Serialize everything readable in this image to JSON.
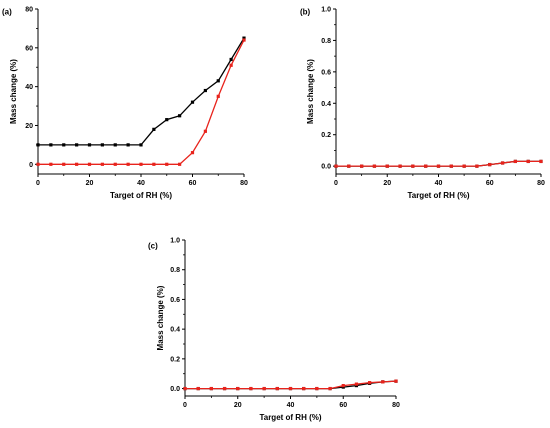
{
  "colors": {
    "black_series": "#000000",
    "red_series": "#e8231c",
    "axis": "#000000"
  },
  "chart_data": [
    {
      "panel_label": "(a)",
      "type": "line",
      "xlabel": "Target of RH (%)",
      "ylabel": "Mass change (%)",
      "xlim": [
        0,
        80
      ],
      "ylim": [
        -5,
        80
      ],
      "xticks": [
        "0",
        "20",
        "40",
        "60",
        "80"
      ],
      "yticks": [
        "0",
        "20",
        "40",
        "60",
        "80"
      ],
      "series": [
        {
          "color": "black",
          "x": [
            0,
            5,
            10,
            15,
            20,
            25,
            30,
            35,
            40,
            45,
            50,
            55,
            60,
            65,
            70,
            75,
            80
          ],
          "y": [
            10,
            10,
            10,
            10,
            10,
            10,
            10,
            10,
            10,
            18,
            23,
            25,
            32,
            38,
            43,
            54,
            65
          ]
        },
        {
          "color": "red",
          "x": [
            0,
            5,
            10,
            15,
            20,
            25,
            30,
            35,
            40,
            45,
            50,
            55,
            60,
            65,
            70,
            75,
            80
          ],
          "y": [
            0,
            0,
            0,
            0,
            0,
            0,
            0,
            0,
            0,
            0,
            0,
            0,
            6,
            17,
            35,
            51,
            64
          ]
        }
      ]
    },
    {
      "panel_label": "(b)",
      "type": "line",
      "xlabel": "Target of RH (%)",
      "ylabel": "Mass change (%)",
      "xlim": [
        0,
        80
      ],
      "ylim": [
        -0.05,
        1.0
      ],
      "xticks": [
        "0",
        "20",
        "40",
        "60",
        "80"
      ],
      "yticks": [
        "0.0",
        "0.2",
        "0.4",
        "0.6",
        "0.8",
        "1.0"
      ],
      "series": [
        {
          "color": "black",
          "x": [
            0,
            5,
            10,
            15,
            20,
            25,
            30,
            35,
            40,
            45,
            50,
            55,
            60,
            65,
            70,
            75,
            80
          ],
          "y": [
            0,
            0,
            0,
            0,
            0,
            0,
            0,
            0,
            0,
            0,
            0,
            0,
            0.01,
            0.02,
            0.03,
            0.03,
            0.03
          ]
        },
        {
          "color": "red",
          "x": [
            0,
            5,
            10,
            15,
            20,
            25,
            30,
            35,
            40,
            45,
            50,
            55,
            60,
            65,
            70,
            75,
            80
          ],
          "y": [
            0,
            0,
            0,
            0,
            0,
            0,
            0,
            0,
            0,
            0,
            0,
            0,
            0.01,
            0.02,
            0.03,
            0.03,
            0.03
          ]
        }
      ]
    },
    {
      "panel_label": "(c)",
      "type": "line",
      "xlabel": "Target of RH (%)",
      "ylabel": "Mass change (%)",
      "xlim": [
        0,
        80
      ],
      "ylim": [
        -0.05,
        1.0
      ],
      "xticks": [
        "0",
        "20",
        "40",
        "60",
        "80"
      ],
      "yticks": [
        "0.0",
        "0.2",
        "0.4",
        "0.6",
        "0.8",
        "1.0"
      ],
      "series": [
        {
          "color": "black",
          "x": [
            0,
            5,
            10,
            15,
            20,
            25,
            30,
            35,
            40,
            45,
            50,
            55,
            60,
            65,
            70,
            75,
            80
          ],
          "y": [
            0,
            0,
            0,
            0,
            0,
            0,
            0,
            0,
            0,
            0,
            0,
            0,
            0.01,
            0.02,
            0.035,
            0.045,
            0.05
          ]
        },
        {
          "color": "red",
          "x": [
            0,
            5,
            10,
            15,
            20,
            25,
            30,
            35,
            40,
            45,
            50,
            55,
            60,
            65,
            70,
            75,
            80
          ],
          "y": [
            0,
            0,
            0,
            0,
            0,
            0,
            0,
            0,
            0,
            0,
            0,
            0,
            0.02,
            0.03,
            0.04,
            0.045,
            0.05
          ]
        }
      ]
    }
  ]
}
